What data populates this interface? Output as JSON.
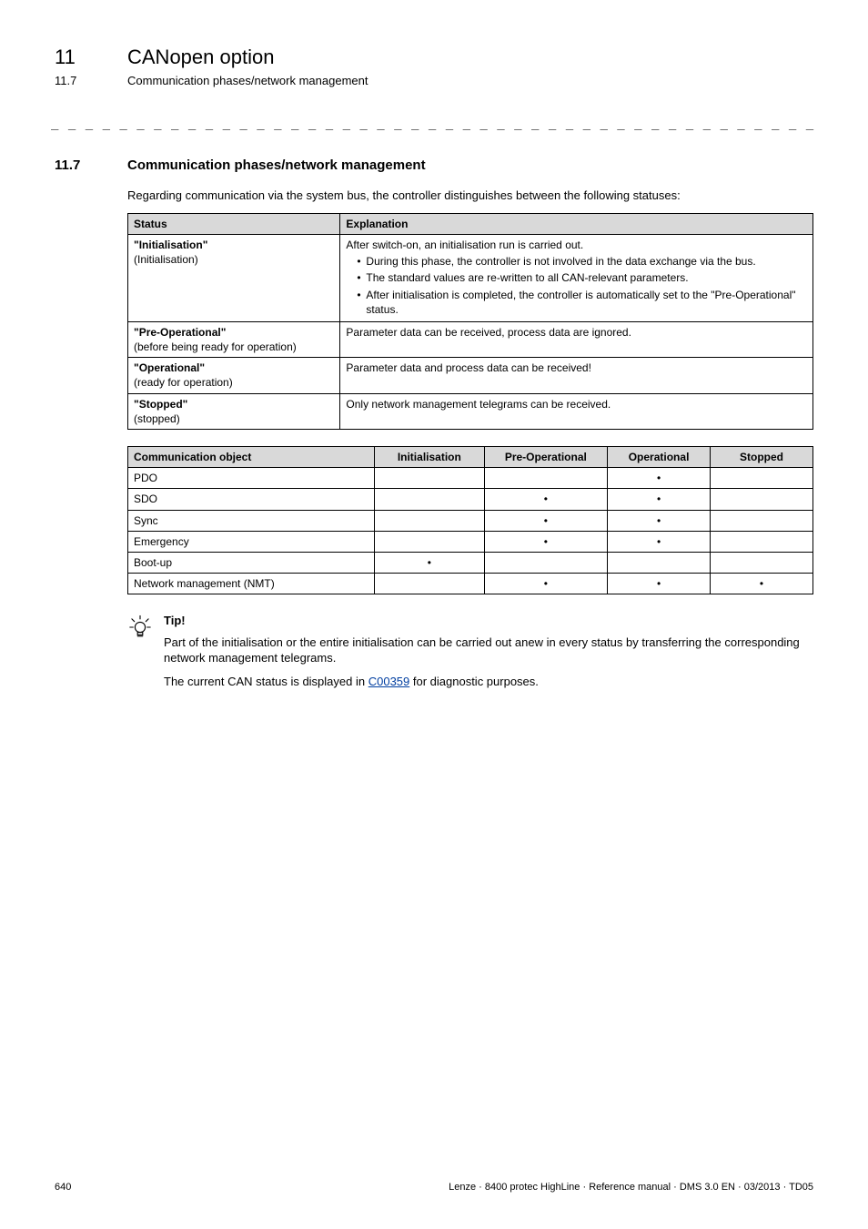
{
  "chapter": {
    "num": "11",
    "title": "CANopen option"
  },
  "subsection": {
    "num": "11.7",
    "title": "Communication phases/network management"
  },
  "section": {
    "num": "11.7",
    "title": "Communication phases/network management"
  },
  "intro": "Regarding communication via the system bus, the controller distinguishes between the following statuses:",
  "separator": "_ _ _ _ _ _ _ _ _ _ _ _ _ _ _ _ _ _ _ _ _ _ _ _ _ _ _ _ _ _ _ _ _ _ _ _ _ _ _ _ _ _ _ _ _ _ _ _ _ _ _ _ _ _ _ _ _ _ _ _ _ _ _ _",
  "table1": {
    "headers": {
      "status": "Status",
      "expl": "Explanation"
    },
    "rows": [
      {
        "status_bold": "\"Initialisation\"",
        "status_plain": "(Initialisation)",
        "expl_lead": "After switch-on, an initialisation run is carried out.",
        "bullets": [
          "During this phase, the controller is not involved in the data exchange via the bus.",
          "The standard values are re-written to all CAN-relevant parameters.",
          "After initialisation is completed, the controller is automatically set to the \"Pre-Operational\" status."
        ]
      },
      {
        "status_bold": "\"Pre-Operational\"",
        "status_plain": "(before being ready for operation)",
        "expl_lead": "Parameter data can be received, process data are ignored.",
        "bullets": []
      },
      {
        "status_bold": "\"Operational\"",
        "status_plain": "(ready for operation)",
        "expl_lead": "Parameter data and process data can be received!",
        "bullets": []
      },
      {
        "status_bold": "\"Stopped\"",
        "status_plain": "(stopped)",
        "expl_lead": "Only network management telegrams can be received.",
        "bullets": []
      }
    ]
  },
  "table2": {
    "headers": {
      "obj": "Communication object",
      "init": "Initialisation",
      "preop": "Pre-Operational",
      "op": "Operational",
      "stop": "Stopped"
    },
    "dot": "•",
    "rows": [
      {
        "obj": "PDO",
        "init": false,
        "preop": false,
        "op": true,
        "stop": false
      },
      {
        "obj": "SDO",
        "init": false,
        "preop": true,
        "op": true,
        "stop": false
      },
      {
        "obj": "Sync",
        "init": false,
        "preop": true,
        "op": true,
        "stop": false
      },
      {
        "obj": "Emergency",
        "init": false,
        "preop": true,
        "op": true,
        "stop": false
      },
      {
        "obj": "Boot-up",
        "init": true,
        "preop": false,
        "op": false,
        "stop": false
      },
      {
        "obj": "Network management (NMT)",
        "init": false,
        "preop": true,
        "op": true,
        "stop": true
      }
    ]
  },
  "tip": {
    "label": "Tip!",
    "p1": "Part of the initialisation or the entire initialisation can be carried out anew in every status by transferring the corresponding network management telegrams.",
    "p2_pre": "The current CAN status is displayed in ",
    "p2_link": "C00359",
    "p2_post": " for diagnostic purposes."
  },
  "footer": {
    "page": "640",
    "ref": "Lenze · 8400 protec HighLine · Reference manual · DMS 3.0 EN · 03/2013 · TD05"
  },
  "colors": {
    "header_bg": "#d9d9d9",
    "link": "#003ea0"
  }
}
